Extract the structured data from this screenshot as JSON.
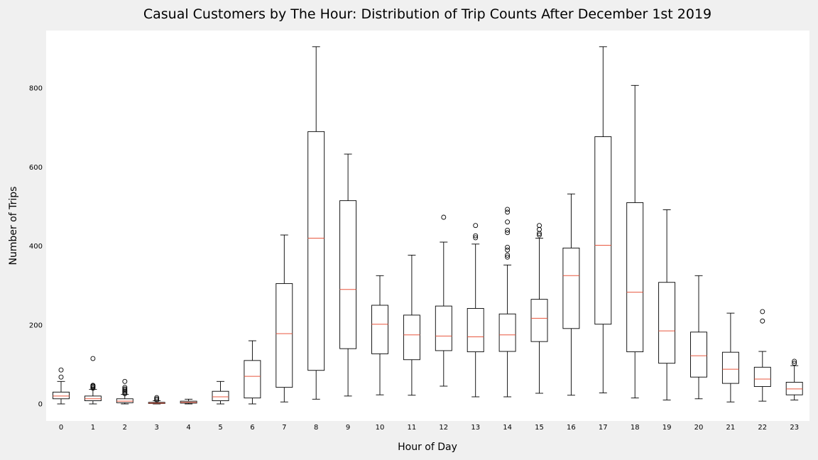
{
  "chart_data": {
    "type": "box",
    "title": "Casual Customers by The Hour: Distribution of Trip Counts After December 1st 2019",
    "xlabel": "Hour of Day",
    "ylabel": "Number of Trips",
    "ylim": [
      -45,
      910
    ],
    "yticks": [
      0,
      200,
      400,
      600,
      800
    ],
    "grid": false,
    "colors": {
      "box": "#000000",
      "median": "#e8573f",
      "plot_bg": "#ffffff",
      "figure_bg": "#f0f0f0"
    },
    "categories": [
      "0",
      "1",
      "2",
      "3",
      "4",
      "5",
      "6",
      "7",
      "8",
      "9",
      "10",
      "11",
      "12",
      "13",
      "14",
      "15",
      "16",
      "17",
      "18",
      "19",
      "20",
      "21",
      "22",
      "23"
    ],
    "boxes": [
      {
        "min": 0,
        "q1": 13,
        "median": 20,
        "q3": 30,
        "max": 57,
        "fliers": [
          68,
          86
        ]
      },
      {
        "min": 0,
        "q1": 8,
        "median": 13,
        "q3": 20,
        "max": 37,
        "fliers": [
          40,
          43,
          45,
          47,
          115
        ]
      },
      {
        "min": 0,
        "q1": 3,
        "median": 7,
        "q3": 13,
        "max": 24,
        "fliers": [
          26,
          29,
          32,
          35,
          38,
          42,
          57
        ]
      },
      {
        "min": 0,
        "q1": 1,
        "median": 2,
        "q3": 4,
        "max": 8,
        "fliers": [
          10,
          13,
          16
        ]
      },
      {
        "min": 0,
        "q1": 2,
        "median": 4,
        "q3": 7,
        "max": 12,
        "fliers": []
      },
      {
        "min": 0,
        "q1": 8,
        "median": 18,
        "q3": 32,
        "max": 57,
        "fliers": []
      },
      {
        "min": 0,
        "q1": 15,
        "median": 70,
        "q3": 110,
        "max": 160,
        "fliers": []
      },
      {
        "min": 5,
        "q1": 42,
        "median": 178,
        "q3": 305,
        "max": 428,
        "fliers": []
      },
      {
        "min": 12,
        "q1": 85,
        "median": 420,
        "q3": 690,
        "max": 905,
        "fliers": []
      },
      {
        "min": 20,
        "q1": 140,
        "median": 290,
        "q3": 515,
        "max": 633,
        "fliers": []
      },
      {
        "min": 23,
        "q1": 127,
        "median": 202,
        "q3": 250,
        "max": 325,
        "fliers": []
      },
      {
        "min": 22,
        "q1": 112,
        "median": 175,
        "q3": 225,
        "max": 377,
        "fliers": []
      },
      {
        "min": 45,
        "q1": 135,
        "median": 172,
        "q3": 248,
        "max": 410,
        "fliers": [
          473
        ]
      },
      {
        "min": 18,
        "q1": 132,
        "median": 170,
        "q3": 242,
        "max": 405,
        "fliers": [
          421,
          426,
          452
        ]
      },
      {
        "min": 18,
        "q1": 133,
        "median": 175,
        "q3": 228,
        "max": 352,
        "fliers": [
          372,
          377,
          390,
          397,
          434,
          440,
          461,
          486,
          493
        ]
      },
      {
        "min": 27,
        "q1": 158,
        "median": 217,
        "q3": 265,
        "max": 420,
        "fliers": [
          428,
          432,
          442,
          452
        ]
      },
      {
        "min": 22,
        "q1": 191,
        "median": 325,
        "q3": 395,
        "max": 532,
        "fliers": []
      },
      {
        "min": 28,
        "q1": 202,
        "median": 402,
        "q3": 677,
        "max": 905,
        "fliers": []
      },
      {
        "min": 15,
        "q1": 132,
        "median": 283,
        "q3": 510,
        "max": 807,
        "fliers": []
      },
      {
        "min": 10,
        "q1": 103,
        "median": 185,
        "q3": 308,
        "max": 492,
        "fliers": []
      },
      {
        "min": 13,
        "q1": 68,
        "median": 122,
        "q3": 182,
        "max": 325,
        "fliers": []
      },
      {
        "min": 5,
        "q1": 52,
        "median": 88,
        "q3": 131,
        "max": 230,
        "fliers": []
      },
      {
        "min": 7,
        "q1": 44,
        "median": 63,
        "q3": 93,
        "max": 133,
        "fliers": [
          210,
          234
        ]
      },
      {
        "min": 10,
        "q1": 23,
        "median": 38,
        "q3": 55,
        "max": 97,
        "fliers": [
          103,
          108
        ]
      }
    ]
  }
}
